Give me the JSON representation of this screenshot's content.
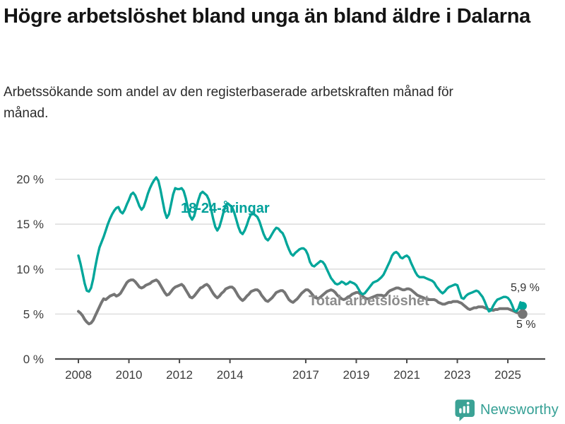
{
  "title": "Högre arbetslöshet bland unga än bland äldre i Dalarna",
  "subtitle": "Arbetssökande som andel av den registerbaserade arbetskraften månad för månad.",
  "footer": {
    "brand": "Newsworthy"
  },
  "colors": {
    "young_line": "#00a69a",
    "total_line": "#757575",
    "young_label": "#00a09a",
    "total_label": "#8c8c8c",
    "annotation_text": "#333333",
    "grid": "#d9d9d9",
    "axis": "#4a4a4a",
    "tick_text": "#3c3c3c",
    "brand_teal": "#35a095",
    "background": "#ffffff"
  },
  "chart_data": {
    "type": "line",
    "frequency": "monthly",
    "x_start": "2008-01",
    "x_end": "2025-08",
    "grid": true,
    "ylim": [
      0,
      21
    ],
    "yticks": [
      "0 %",
      "5 %",
      "10 %",
      "15 %",
      "20 %"
    ],
    "xticks": [
      2008,
      2010,
      2012,
      2014,
      2017,
      2019,
      2021,
      2023,
      2025
    ],
    "series": [
      {
        "name": "18-24-åringar",
        "color": "#00a69a",
        "label_color": "#00a09a",
        "end_label": "5,9 %",
        "end_value": 5.9,
        "values": [
          11.5,
          10.6,
          9.5,
          8.4,
          7.6,
          7.5,
          7.9,
          8.9,
          10.2,
          11.4,
          12.4,
          13.0,
          13.6,
          14.3,
          15.0,
          15.6,
          16.1,
          16.5,
          16.8,
          16.9,
          16.4,
          16.2,
          16.6,
          17.2,
          17.7,
          18.3,
          18.5,
          18.2,
          17.6,
          17.0,
          16.6,
          16.9,
          17.6,
          18.4,
          19.0,
          19.5,
          19.9,
          20.2,
          19.8,
          18.8,
          17.6,
          16.4,
          15.7,
          16.1,
          17.2,
          18.3,
          19.0,
          18.9,
          18.9,
          19.0,
          18.7,
          17.9,
          16.8,
          15.9,
          15.5,
          15.9,
          16.8,
          17.7,
          18.4,
          18.6,
          18.4,
          18.2,
          17.7,
          16.7,
          15.6,
          14.7,
          14.3,
          14.7,
          15.5,
          16.4,
          17.1,
          17.3,
          17.1,
          16.9,
          16.3,
          15.5,
          14.7,
          14.1,
          13.9,
          14.3,
          14.9,
          15.6,
          16.1,
          16.2,
          16.0,
          15.8,
          15.3,
          14.6,
          13.9,
          13.4,
          13.2,
          13.5,
          13.9,
          14.3,
          14.6,
          14.5,
          14.2,
          14.0,
          13.5,
          12.8,
          12.2,
          11.7,
          11.5,
          11.8,
          12.0,
          12.2,
          12.3,
          12.3,
          12.1,
          11.6,
          10.8,
          10.4,
          10.3,
          10.5,
          10.7,
          10.9,
          10.8,
          10.5,
          10.0,
          9.5,
          9.0,
          8.7,
          8.4,
          8.3,
          8.4,
          8.6,
          8.5,
          8.3,
          8.4,
          8.6,
          8.5,
          8.4,
          8.2,
          7.8,
          7.4,
          7.2,
          7.3,
          7.6,
          7.9,
          8.2,
          8.5,
          8.6,
          8.7,
          8.9,
          9.1,
          9.4,
          9.9,
          10.4,
          10.9,
          11.5,
          11.8,
          11.9,
          11.7,
          11.3,
          11.2,
          11.4,
          11.5,
          11.3,
          10.7,
          10.2,
          9.7,
          9.3,
          9.1,
          9.1,
          9.1,
          9.0,
          8.9,
          8.8,
          8.7,
          8.5,
          8.1,
          7.8,
          7.5,
          7.3,
          7.5,
          7.8,
          8.0,
          8.1,
          8.2,
          8.3,
          8.2,
          7.5,
          6.8,
          6.7,
          7.0,
          7.2,
          7.3,
          7.4,
          7.5,
          7.6,
          7.5,
          7.2,
          6.9,
          6.4,
          5.8,
          5.3,
          5.4,
          5.9,
          6.3,
          6.6,
          6.7,
          6.8,
          6.9,
          6.9,
          6.8,
          6.5,
          6.0,
          5.4,
          5.3,
          5.6,
          6.3,
          5.9
        ]
      },
      {
        "name": "Total arbetslöshet",
        "color": "#757575",
        "label_color": "#8c8c8c",
        "end_label": "5 %",
        "end_value": 5.0,
        "values": [
          5.3,
          5.1,
          4.8,
          4.4,
          4.1,
          3.9,
          4.0,
          4.3,
          4.8,
          5.3,
          5.8,
          6.3,
          6.7,
          6.6,
          6.8,
          7.0,
          7.1,
          7.2,
          7.0,
          7.1,
          7.3,
          7.7,
          8.1,
          8.5,
          8.7,
          8.8,
          8.8,
          8.6,
          8.3,
          8.0,
          7.9,
          8.0,
          8.2,
          8.3,
          8.4,
          8.6,
          8.7,
          8.8,
          8.6,
          8.2,
          7.8,
          7.4,
          7.1,
          7.2,
          7.5,
          7.8,
          8.0,
          8.1,
          8.2,
          8.3,
          8.1,
          7.7,
          7.3,
          6.9,
          6.8,
          7.0,
          7.3,
          7.6,
          7.9,
          8.0,
          8.2,
          8.3,
          8.1,
          7.7,
          7.3,
          7.0,
          6.8,
          7.0,
          7.3,
          7.5,
          7.8,
          7.9,
          8.0,
          8.0,
          7.8,
          7.4,
          7.0,
          6.7,
          6.5,
          6.7,
          7.0,
          7.2,
          7.5,
          7.6,
          7.7,
          7.7,
          7.5,
          7.1,
          6.8,
          6.5,
          6.4,
          6.6,
          6.8,
          7.1,
          7.4,
          7.5,
          7.6,
          7.6,
          7.4,
          7.0,
          6.6,
          6.4,
          6.3,
          6.5,
          6.7,
          7.0,
          7.3,
          7.5,
          7.7,
          7.7,
          7.5,
          7.2,
          6.9,
          6.8,
          6.7,
          6.9,
          7.1,
          7.3,
          7.5,
          7.6,
          7.7,
          7.6,
          7.4,
          7.1,
          6.9,
          6.7,
          6.6,
          6.7,
          6.9,
          7.0,
          7.2,
          7.3,
          7.4,
          7.4,
          7.2,
          7.0,
          6.8,
          6.7,
          6.7,
          6.8,
          6.9,
          7.0,
          7.1,
          7.1,
          7.1,
          7.0,
          7.1,
          7.4,
          7.6,
          7.7,
          7.8,
          7.9,
          7.9,
          7.8,
          7.7,
          7.7,
          7.8,
          7.8,
          7.7,
          7.5,
          7.3,
          7.1,
          7.0,
          6.9,
          6.8,
          6.7,
          6.6,
          6.6,
          6.6,
          6.6,
          6.5,
          6.3,
          6.2,
          6.1,
          6.1,
          6.2,
          6.3,
          6.3,
          6.4,
          6.4,
          6.4,
          6.3,
          6.2,
          6.0,
          5.8,
          5.6,
          5.5,
          5.6,
          5.7,
          5.7,
          5.8,
          5.8,
          5.8,
          5.7,
          5.6,
          5.5,
          5.5,
          5.4,
          5.5,
          5.5,
          5.6,
          5.6,
          5.6,
          5.6,
          5.6,
          5.5,
          5.4,
          5.3,
          5.2,
          5.1,
          5.0,
          5.0
        ]
      }
    ]
  }
}
